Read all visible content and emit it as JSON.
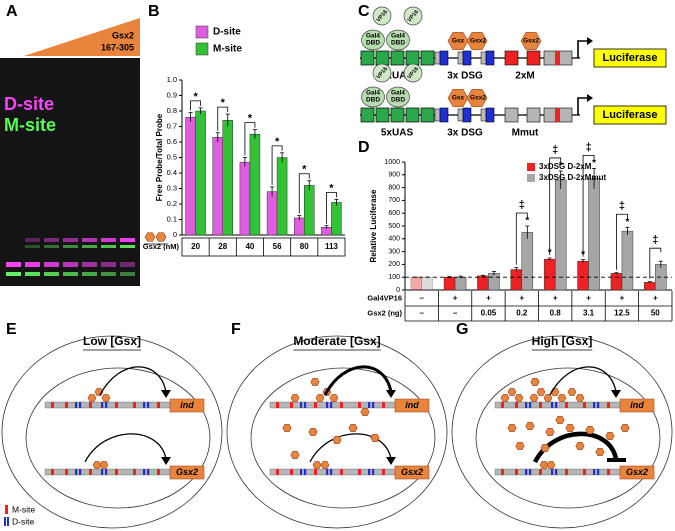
{
  "panel_labels": [
    "A",
    "B",
    "C",
    "D",
    "E",
    "F",
    "G"
  ],
  "gel": {
    "protein": "Gsx2",
    "range": "167-305",
    "probes": [
      "D-site",
      "M-site"
    ]
  },
  "chart_data": [
    {
      "type": "bar",
      "ylabel": "Free Probe/Total Probe",
      "xlabel": "Gsx2 (nM)",
      "categories": [
        "20",
        "28",
        "40",
        "56",
        "80",
        "113"
      ],
      "series": [
        {
          "name": "D-site",
          "color": "#e05ce0",
          "values": [
            0.76,
            0.63,
            0.47,
            0.28,
            0.11,
            0.05
          ],
          "errors": [
            0.03,
            0.03,
            0.03,
            0.03,
            0.015,
            0.01
          ]
        },
        {
          "name": "M-site",
          "color": "#33c233",
          "values": [
            0.8,
            0.74,
            0.65,
            0.5,
            0.32,
            0.21
          ],
          "errors": [
            0.02,
            0.04,
            0.03,
            0.03,
            0.03,
            0.02
          ]
        }
      ],
      "ylim": [
        0,
        1
      ],
      "yticks": [
        0,
        0.1,
        0.2,
        0.3,
        0.4,
        0.5,
        0.6,
        0.7,
        0.8,
        0.9,
        {
          "value": 1,
          "label": "1.0"
        }
      ],
      "significance": [
        "*",
        "*",
        "*",
        "*",
        "*",
        "*"
      ]
    },
    {
      "type": "bar",
      "ylabel": "Relative Luciferase",
      "series": [
        {
          "name": "3xDSG D-2xM",
          "color": "#ee2222",
          "values": [
            100,
            100,
            110,
            160,
            240,
            225,
            130,
            60
          ],
          "errors": [
            0,
            5,
            5,
            15,
            10,
            12,
            5,
            5
          ],
          "stars": [
            null,
            null,
            null,
            null,
            "*",
            "*",
            null,
            null
          ]
        },
        {
          "name": "3xDSG D-2xMmut",
          "color": "#a6a6a6",
          "values": [
            100,
            100,
            130,
            450,
            860,
            870,
            460,
            200
          ],
          "errors": [
            0,
            8,
            15,
            50,
            70,
            80,
            30,
            25
          ],
          "stars": [
            null,
            null,
            null,
            "*",
            "*",
            "*",
            "*",
            null
          ]
        }
      ],
      "daggers": [
        null,
        null,
        null,
        "‡",
        "‡",
        "‡",
        "‡",
        "‡"
      ],
      "reference_line": 100,
      "ylim": [
        0,
        1000
      ],
      "yticks": [
        0,
        100,
        200,
        300,
        400,
        500,
        600,
        700,
        800,
        900,
        1000
      ],
      "table": [
        {
          "label": "Gal4VP16",
          "cells": [
            "–",
            "+",
            "+",
            "+",
            "+",
            "+",
            "+",
            "+"
          ]
        },
        {
          "label": "Gsx2 (ng)",
          "cells": [
            "–",
            "–",
            "0.05",
            "0.2",
            "0.8",
            "3.1",
            "12.5",
            "50"
          ]
        }
      ]
    }
  ],
  "construct": {
    "dbd": [
      "Gal4",
      "DBD"
    ],
    "activator": "VP16",
    "dimer": [
      "Gsx",
      "Gsx2"
    ],
    "monomer": "Gsx2",
    "rows": [
      {
        "elements": [
          "5xUAS",
          "3x DSG",
          "2xM"
        ],
        "reporter": "Luciferase"
      },
      {
        "elements": [
          "5xUAS",
          "3x DSG",
          "Mmut"
        ],
        "reporter": "Luciferase"
      }
    ]
  },
  "models": [
    {
      "title": "Low [Gsx]",
      "genes": [
        "ind",
        "Gsx2"
      ]
    },
    {
      "title": "Moderate [Gsx]",
      "genes": [
        "ind",
        "Gsx2"
      ]
    },
    {
      "title": "High [Gsx]",
      "genes": [
        "ind",
        "Gsx2"
      ]
    }
  ],
  "site_legend": [
    "M-site",
    "D-site"
  ]
}
